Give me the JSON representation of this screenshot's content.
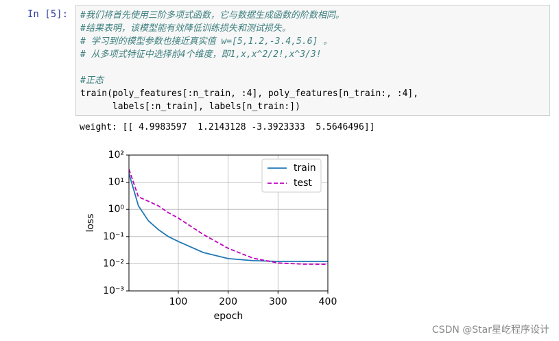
{
  "cell": {
    "prompt": "In  [5]:",
    "comments": [
      "#我们将首先使用三阶多项式函数，它与数据生成函数的阶数相同。",
      "#结果表明，该模型能有效降低训练损失和测试损失。",
      "# 学习到的模型参数也接近真实值 w=[5,1.2,-3.4,5.6] 。",
      "# 从多项式特征中选择前4个维度，即1,x,x^2/2!,x^3/3!"
    ],
    "code": [
      "#正态",
      "train(poly_features[:n_train, :4], poly_features[n_train:, :4],",
      "      labels[:n_train], labels[n_train:])"
    ]
  },
  "output": {
    "text": "weight: [[ 4.9983597  1.2143128 -3.3923333  5.5646496]]"
  },
  "chart_data": {
    "type": "line",
    "xlabel": "epoch",
    "ylabel": "loss",
    "x": [
      1,
      20,
      40,
      60,
      80,
      100,
      150,
      200,
      250,
      300,
      350,
      400
    ],
    "series": [
      {
        "name": "train",
        "color": "#1f77b4",
        "dash": false,
        "values": [
          21,
          1.35,
          0.38,
          0.18,
          0.1,
          0.066,
          0.026,
          0.0155,
          0.013,
          0.0122,
          0.0122,
          0.0122
        ]
      },
      {
        "name": "test",
        "color": "#bf00bf",
        "dash": true,
        "values": [
          30,
          2.9,
          2.0,
          1.35,
          0.76,
          0.48,
          0.12,
          0.037,
          0.016,
          0.0107,
          0.0097,
          0.0096
        ]
      }
    ],
    "xlim": [
      1,
      400
    ],
    "xticks": [
      100,
      200,
      300,
      400
    ],
    "ylim": [
      0.001,
      100
    ],
    "log_y": true,
    "yticks": [
      {
        "value": 0.001,
        "label": "10⁻³"
      },
      {
        "value": 0.01,
        "label": "10⁻²"
      },
      {
        "value": 0.1,
        "label": "10⁻¹"
      },
      {
        "value": 1,
        "label": "10⁰"
      },
      {
        "value": 10,
        "label": "10¹"
      },
      {
        "value": 100,
        "label": "10²"
      }
    ],
    "grid": true,
    "legend": "upper right"
  },
  "watermark": "CSDN @Star星屹程序设计"
}
